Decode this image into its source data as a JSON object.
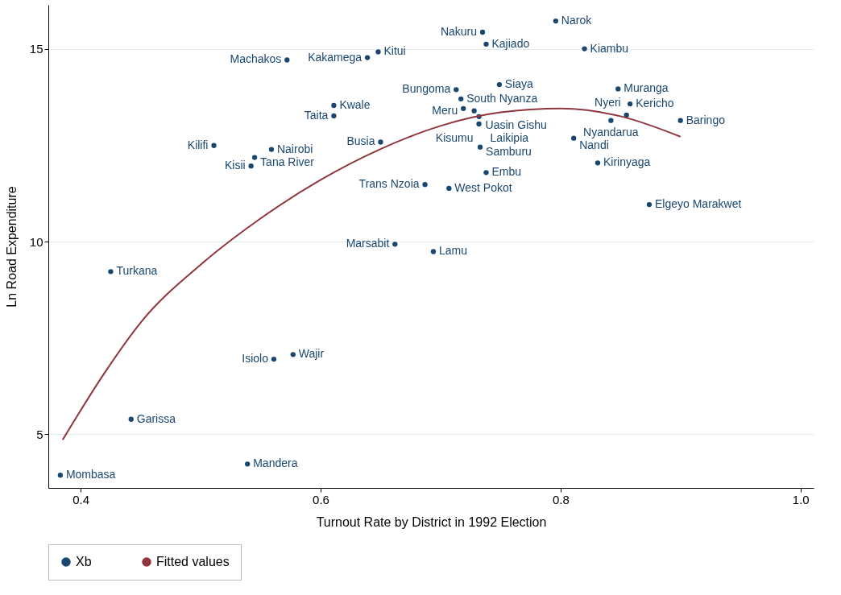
{
  "chart_data": {
    "type": "scatter",
    "xlabel": "Turnout Rate by District in 1992 Election",
    "ylabel": "Ln Road Expenditure",
    "xlim": [
      0.373,
      1.011
    ],
    "ylim": [
      3.61,
      16.14
    ],
    "xticks": [
      0.4,
      0.6,
      0.8,
      {
        "value": 1,
        "label": "1.0"
      }
    ],
    "yticks": [
      5,
      10,
      15
    ],
    "grid": "y",
    "legend": "bottom",
    "marker": "circle",
    "series": [
      {
        "name": "Xb",
        "color": "#1a476f",
        "x": [
          0.796,
          0.735,
          0.738,
          0.82,
          0.648,
          0.639,
          0.572,
          0.713,
          0.749,
          0.848,
          0.717,
          0.611,
          0.858,
          0.719,
          0.728,
          0.855,
          0.611,
          0.732,
          0.842,
          0.9,
          0.732,
          0.811,
          0.511,
          0.65,
          0.733,
          0.559,
          0.545,
          0.542,
          0.831,
          0.738,
          0.687,
          0.707,
          0.874,
          0.662,
          0.694,
          0.425,
          0.577,
          0.561,
          0.442,
          0.539,
          0.383
        ],
        "values": [
          15.72,
          15.43,
          15.12,
          15.0,
          14.92,
          14.77,
          14.71,
          13.94,
          14.07,
          13.96,
          13.7,
          13.53,
          13.57,
          13.45,
          13.39,
          13.28,
          13.26,
          13.24,
          13.14,
          13.14,
          13.05,
          12.68,
          12.49,
          12.58,
          12.45,
          12.39,
          12.18,
          11.96,
          12.04,
          11.79,
          11.48,
          11.38,
          10.96,
          9.93,
          9.74,
          9.22,
          7.07,
          6.95,
          5.39,
          4.23,
          3.94
        ],
        "value_labels": [
          "Narok",
          "Nakuru",
          "Kajiado",
          "Kiambu",
          "Kitui",
          "Kakamega",
          "Machakos",
          "Bungoma",
          "Siaya",
          "Muranga",
          "South Nyanza",
          "Kwale",
          "Kericho",
          "Meru",
          "Uasin Gishu",
          "Nyeri",
          "Taita",
          "Laikipia",
          "Nyandarua",
          "Baringo",
          "Kisumu",
          "Nandi",
          "Kilifi",
          "Busia",
          "Samburu",
          "Nairobi",
          "Tana River",
          "Kisii",
          "Kirinyaga",
          "Embu",
          "Trans Nzoia",
          "West Pokot",
          "Elgeyo Marakwet",
          "Marsabit",
          "Lamu",
          "Turkana",
          "Wajir",
          "Isiolo",
          "Garissa",
          "Mandera",
          "Mombasa"
        ]
      },
      {
        "name": "Fitted values",
        "type": "line",
        "color": "#90353b",
        "line_style": "solid",
        "marker": "none",
        "x": [
          0.385,
          0.42,
          0.45,
          0.5,
          0.55,
          0.6,
          0.65,
          0.7,
          0.75,
          0.8,
          0.85,
          0.9
        ],
        "values": [
          4.86,
          6.6,
          7.9,
          9.4,
          10.6,
          11.6,
          12.4,
          13.0,
          13.35,
          13.45,
          13.25,
          12.72
        ]
      }
    ]
  }
}
